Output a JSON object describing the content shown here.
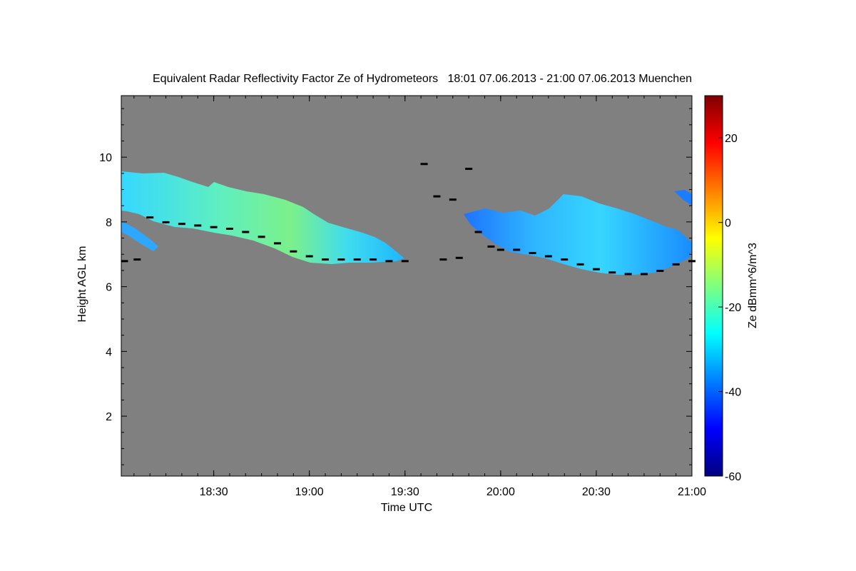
{
  "chart_data": {
    "type": "heatmap",
    "title": "Equivalent Radar Reflectivity Factor Ze of Hydrometeors   18:01 07.06.2013 - 21:00 07.06.2013 Muenchen",
    "xlabel": "Time UTC",
    "ylabel": "Height AGL km",
    "xlim": [
      "18:01",
      "21:00"
    ],
    "ylim": [
      0.15,
      11.9
    ],
    "x_ticks": [
      "18:30",
      "19:00",
      "19:30",
      "20:00",
      "20:30",
      "21:00"
    ],
    "y_ticks": [
      "2",
      "4",
      "6",
      "8",
      "10"
    ],
    "background_color": "#808080",
    "colorbar": {
      "label": "Ze dBmm^6/m^3",
      "range": [
        -60,
        30
      ],
      "ticks": [
        "-60",
        "-40",
        "-20",
        "0",
        "20"
      ],
      "colormap": "jet"
    },
    "echo_regions": [
      {
        "name": "",
        "ze_range": [
          -35,
          -12
        ],
        "time_range": [
          "18:01",
          "19:33"
        ],
        "height_range": [
          6.7,
          9.7
        ]
      },
      {
        "name": "",
        "ze_range": [
          -40,
          -22
        ],
        "time_range": [
          "19:49",
          "21:00"
        ],
        "height_range": [
          6.4,
          9.0
        ]
      }
    ],
    "cloud_base_markers": [
      {
        "time": "18:02",
        "height": 6.8
      },
      {
        "time": "18:06",
        "height": 6.85
      },
      {
        "time": "18:10",
        "height": 8.15
      },
      {
        "time": "18:15",
        "height": 8.0
      },
      {
        "time": "18:20",
        "height": 7.95
      },
      {
        "time": "18:25",
        "height": 7.9
      },
      {
        "time": "18:30",
        "height": 7.85
      },
      {
        "time": "18:35",
        "height": 7.8
      },
      {
        "time": "18:40",
        "height": 7.7
      },
      {
        "time": "18:45",
        "height": 7.55
      },
      {
        "time": "18:50",
        "height": 7.35
      },
      {
        "time": "18:55",
        "height": 7.1
      },
      {
        "time": "19:00",
        "height": 6.95
      },
      {
        "time": "19:05",
        "height": 6.85
      },
      {
        "time": "19:10",
        "height": 6.85
      },
      {
        "time": "19:15",
        "height": 6.85
      },
      {
        "time": "19:20",
        "height": 6.85
      },
      {
        "time": "19:25",
        "height": 6.8
      },
      {
        "time": "19:30",
        "height": 6.8
      },
      {
        "time": "19:36",
        "height": 9.8
      },
      {
        "time": "19:40",
        "height": 8.8
      },
      {
        "time": "19:45",
        "height": 8.7
      },
      {
        "time": "19:42",
        "height": 6.85
      },
      {
        "time": "19:47",
        "height": 6.9
      },
      {
        "time": "19:50",
        "height": 9.65
      },
      {
        "time": "19:53",
        "height": 7.7
      },
      {
        "time": "19:57",
        "height": 7.25
      },
      {
        "time": "20:00",
        "height": 7.15
      },
      {
        "time": "20:05",
        "height": 7.15
      },
      {
        "time": "20:10",
        "height": 7.05
      },
      {
        "time": "20:15",
        "height": 6.95
      },
      {
        "time": "20:20",
        "height": 6.85
      },
      {
        "time": "20:25",
        "height": 6.7
      },
      {
        "time": "20:30",
        "height": 6.55
      },
      {
        "time": "20:35",
        "height": 6.45
      },
      {
        "time": "20:40",
        "height": 6.4
      },
      {
        "time": "20:45",
        "height": 6.4
      },
      {
        "time": "20:50",
        "height": 6.5
      },
      {
        "time": "20:55",
        "height": 6.7
      },
      {
        "time": "21:00",
        "height": 6.8
      }
    ]
  }
}
